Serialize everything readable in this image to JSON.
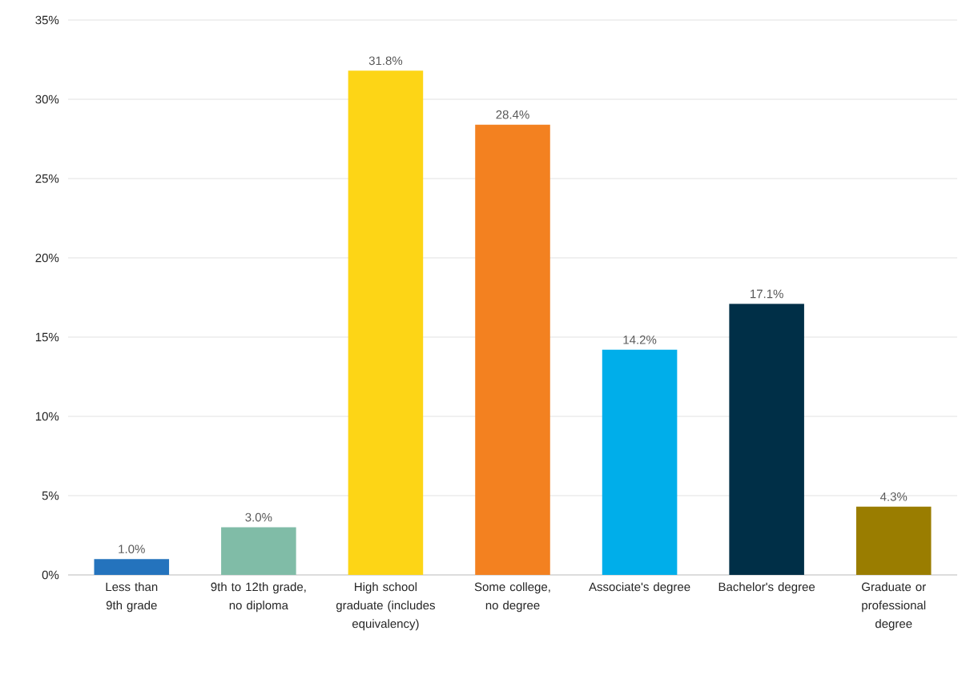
{
  "chart_data": {
    "type": "bar",
    "categories": [
      "Less than 9th grade",
      "9th to 12th grade, no diploma",
      "High school graduate (includes equivalency)",
      "Some college, no degree",
      "Associate's degree",
      "Bachelor's degree",
      "Graduate or professional degree"
    ],
    "values": [
      1.0,
      3.0,
      31.8,
      28.4,
      14.2,
      17.1,
      4.3
    ],
    "colors": [
      "#2473bd",
      "#80bca7",
      "#fdd516",
      "#f38120",
      "#00aeea",
      "#002f47",
      "#9a7d00"
    ],
    "value_labels": [
      "1.0%",
      "3.0%",
      "31.8%",
      "28.4%",
      "14.2%",
      "17.1%",
      "4.3%"
    ],
    "ylim": [
      0,
      35
    ],
    "yticks": [
      {
        "value": 0,
        "label": "0%"
      },
      {
        "value": 5,
        "label": "5%"
      },
      {
        "value": 10,
        "label": "10%"
      },
      {
        "value": 15,
        "label": "15%"
      },
      {
        "value": 20,
        "label": "20%"
      },
      {
        "value": 25,
        "label": "25%"
      },
      {
        "value": 30,
        "label": "30%"
      },
      {
        "value": 35,
        "label": "35%"
      }
    ],
    "grid": "y"
  }
}
